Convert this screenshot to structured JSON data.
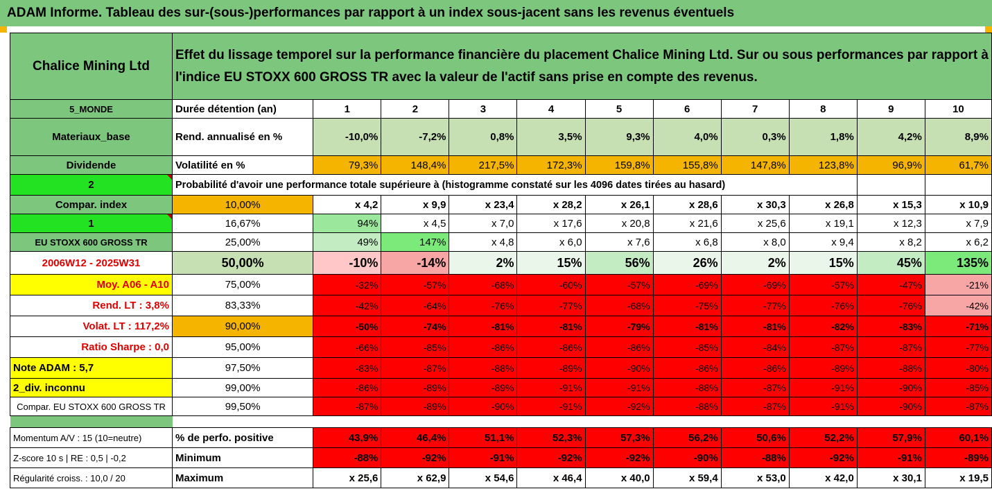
{
  "title": "ADAM Informe. Tableau des sur-(sous-)performances par rapport à un index sous-jacent sans les revenus éventuels",
  "header": {
    "asset_name": "Chalice Mining Ltd",
    "description_line1": "Effet du lissage temporel sur la performance financière du placement Chalice Mining Ltd. Sur ou sous performances par rapport à",
    "description_line2": "l'indice EU STOXX 600 GROSS TR avec la valeur de l'actif sans prise en compte des revenus."
  },
  "left_labels": {
    "zone": "5_MONDE",
    "sector": "Materiaux_base",
    "dividend": "Dividende",
    "dividend_value": "2",
    "compar_index": "Compar. index",
    "compar_index_value": "1",
    "index_name": "EU STOXX 600 GROSS TR",
    "period": "2006W12 - 2025W31",
    "moy": "Moy. A06 - A10",
    "rend_lt": "Rend. LT :   3,8%",
    "volat_lt": "Volat. LT :   117,2%",
    "sharpe": "Ratio Sharpe :   0,0",
    "note": "Note ADAM : 5,7",
    "div_info": "2_div. inconnu",
    "compar_full": "Compar. EU STOXX 600 GROSS TR"
  },
  "row_labels": {
    "duration": "Durée détention (an)",
    "rend": "Rend. annualisé en %",
    "vol": "Volatilité en %",
    "proba": "Probabilité d'avoir une performance totale supérieure à (histogramme constaté sur les 4096 dates tirées au hasard)"
  },
  "years": [
    "1",
    "2",
    "3",
    "4",
    "5",
    "6",
    "7",
    "8",
    "9",
    "10"
  ],
  "rend": [
    "-10,0%",
    "-7,2%",
    "0,8%",
    "3,5%",
    "9,3%",
    "4,0%",
    "0,3%",
    "1,8%",
    "4,2%",
    "8,9%"
  ],
  "vol": [
    "79,3%",
    "148,4%",
    "217,5%",
    "172,3%",
    "159,8%",
    "155,8%",
    "147,8%",
    "123,8%",
    "96,9%",
    "61,7%"
  ],
  "percentile_rows": [
    {
      "pct": "10,00%",
      "values": [
        "x 4,2",
        "x 9,9",
        "x 23,4",
        "x 28,2",
        "x 26,1",
        "x 28,6",
        "x 30,3",
        "x 26,8",
        "x 15,3",
        "x 10,9"
      ]
    },
    {
      "pct": "16,67%",
      "values": [
        "94%",
        "x 4,5",
        "x 7,0",
        "x 17,6",
        "x 20,8",
        "x 21,6",
        "x 25,6",
        "x 19,1",
        "x 12,3",
        "x 7,9"
      ]
    },
    {
      "pct": "25,00%",
      "values": [
        "49%",
        "147%",
        "x 4,8",
        "x 6,0",
        "x 7,6",
        "x 6,8",
        "x 8,0",
        "x 9,4",
        "x 8,2",
        "x 6,2"
      ]
    },
    {
      "pct": "50,00%",
      "values": [
        "-10%",
        "-14%",
        "2%",
        "15%",
        "56%",
        "26%",
        "2%",
        "15%",
        "45%",
        "135%"
      ]
    },
    {
      "pct": "75,00%",
      "values": [
        "-32%",
        "-57%",
        "-68%",
        "-60%",
        "-57%",
        "-69%",
        "-69%",
        "-57%",
        "-47%",
        "-21%"
      ]
    },
    {
      "pct": "83,33%",
      "values": [
        "-42%",
        "-64%",
        "-76%",
        "-77%",
        "-68%",
        "-75%",
        "-77%",
        "-76%",
        "-76%",
        "-42%"
      ]
    },
    {
      "pct": "90,00%",
      "values": [
        "-50%",
        "-74%",
        "-81%",
        "-81%",
        "-79%",
        "-81%",
        "-81%",
        "-82%",
        "-83%",
        "-71%"
      ]
    },
    {
      "pct": "95,00%",
      "values": [
        "-66%",
        "-85%",
        "-86%",
        "-86%",
        "-86%",
        "-85%",
        "-84%",
        "-87%",
        "-87%",
        "-77%"
      ]
    },
    {
      "pct": "97,50%",
      "values": [
        "-83%",
        "-87%",
        "-88%",
        "-89%",
        "-90%",
        "-86%",
        "-86%",
        "-89%",
        "-88%",
        "-80%"
      ]
    },
    {
      "pct": "99,00%",
      "values": [
        "-86%",
        "-89%",
        "-89%",
        "-91%",
        "-91%",
        "-88%",
        "-87%",
        "-91%",
        "-90%",
        "-85%"
      ]
    },
    {
      "pct": "99,50%",
      "values": [
        "-87%",
        "-89%",
        "-90%",
        "-91%",
        "-92%",
        "-88%",
        "-87%",
        "-91%",
        "-90%",
        "-87%"
      ]
    }
  ],
  "stats": [
    {
      "left": "Momentum A/V : 15 (10=neutre)",
      "label": "% de perfo. positive",
      "values": [
        "43,9%",
        "46,4%",
        "51,1%",
        "52,3%",
        "57,3%",
        "56,2%",
        "50,6%",
        "52,2%",
        "57,9%",
        "60,1%"
      ]
    },
    {
      "left": "Z-score 10 s | RE : 0,5 | -0,2",
      "label": "Minimum",
      "values": [
        "-88%",
        "-92%",
        "-91%",
        "-92%",
        "-92%",
        "-90%",
        "-88%",
        "-92%",
        "-91%",
        "-89%"
      ]
    },
    {
      "left": "Régularité croiss. : 10,0 / 20",
      "label": "Maximum",
      "values": [
        "x 25,6",
        "x 62,9",
        "x 54,6",
        "x 46,4",
        "x 40,0",
        "x 59,4",
        "x 53,0",
        "x 42,0",
        "x 30,1",
        "x 19,5"
      ]
    }
  ]
}
